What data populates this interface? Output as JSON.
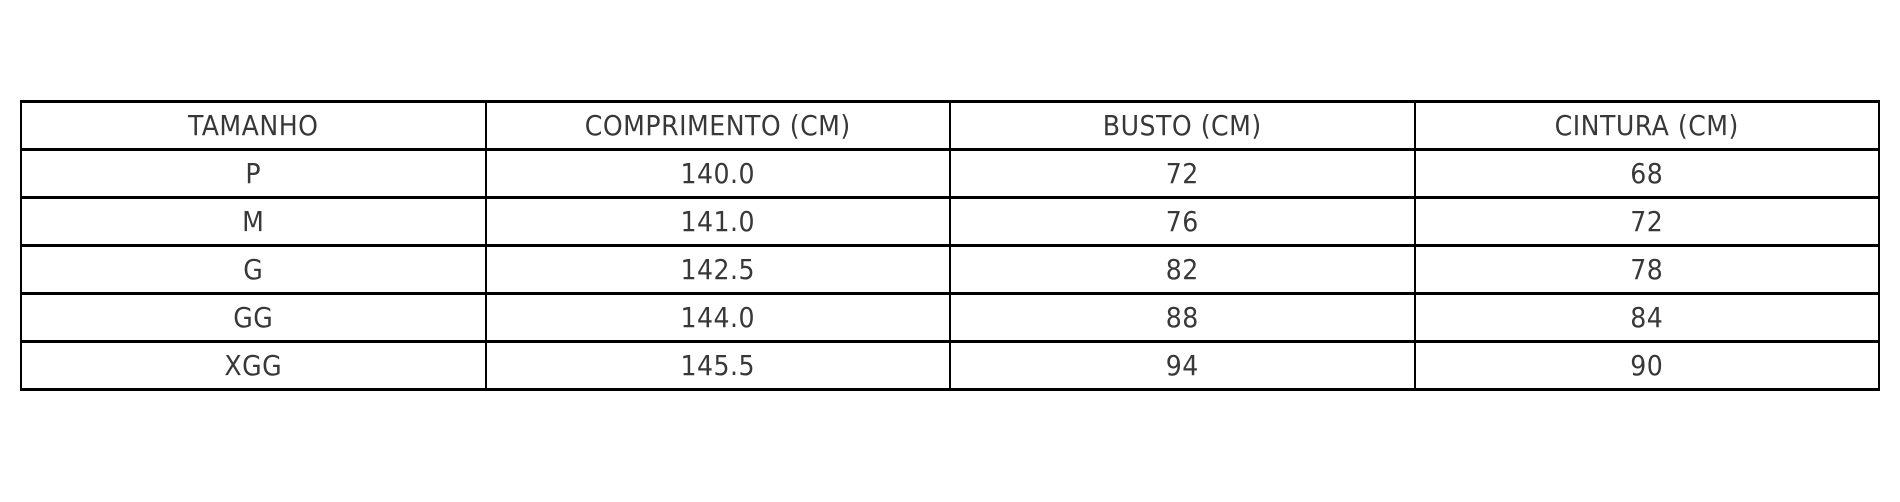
{
  "colors": {
    "background": "#ffffff",
    "border": "#000000",
    "text": "#383838"
  },
  "table": {
    "columns": [
      "TAMANHO",
      "COMPRIMENTO (CM)",
      "BUSTO (CM)",
      "CINTURA (CM)"
    ],
    "rows": [
      [
        "P",
        "140.0",
        "72",
        "68"
      ],
      [
        "M",
        "141.0",
        "76",
        "72"
      ],
      [
        "G",
        "142.5",
        "82",
        "78"
      ],
      [
        "GG",
        "144.0",
        "88",
        "84"
      ],
      [
        "XGG",
        "145.5",
        "94",
        "90"
      ]
    ]
  },
  "chart_data": {
    "type": "table",
    "title": "",
    "columns": [
      "TAMANHO",
      "COMPRIMENTO (CM)",
      "BUSTO (CM)",
      "CINTURA (CM)"
    ],
    "rows": [
      {
        "tamanho": "P",
        "comprimento_cm": 140.0,
        "busto_cm": 72,
        "cintura_cm": 68
      },
      {
        "tamanho": "M",
        "comprimento_cm": 141.0,
        "busto_cm": 76,
        "cintura_cm": 72
      },
      {
        "tamanho": "G",
        "comprimento_cm": 142.5,
        "busto_cm": 82,
        "cintura_cm": 78
      },
      {
        "tamanho": "GG",
        "comprimento_cm": 144.0,
        "busto_cm": 88,
        "cintura_cm": 84
      },
      {
        "tamanho": "XGG",
        "comprimento_cm": 145.5,
        "busto_cm": 94,
        "cintura_cm": 90
      }
    ],
    "layout": {
      "grid": true,
      "header_row": true,
      "cell_alignment": "center"
    }
  }
}
